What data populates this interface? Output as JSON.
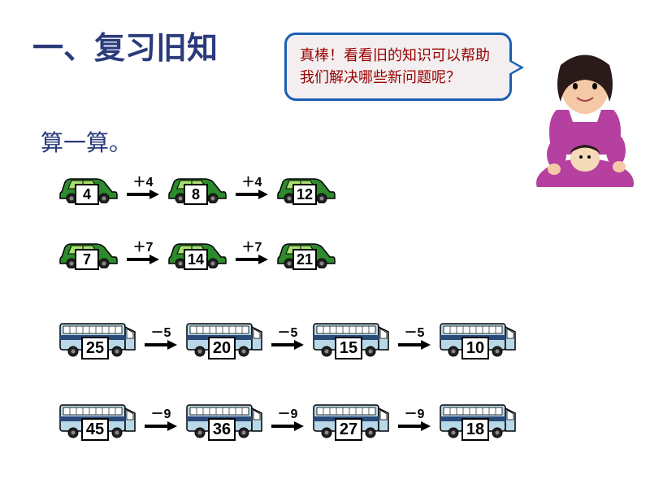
{
  "title": "一、复习旧知",
  "subtitle": "算一算。",
  "speech": "真棒！看看旧的知识可以帮助我们解决哪些新问题呢？",
  "colors": {
    "title_color": "#2a3a7a",
    "speech_border": "#1a5fb4",
    "speech_bg": "#f3eff0",
    "speech_text": "#990000",
    "car_body": "#2d8a2d",
    "car_dark": "#1a5c1a",
    "car_window": "#a8e070",
    "bus_body": "#b8d8e8",
    "bus_stripe": "#2a4a7a",
    "bus_window": "#ffffff",
    "arrow_color": "#000000",
    "num_box_bg": "#ffffff",
    "num_box_border": "#000000",
    "teacher_hair": "#2a1a1a",
    "teacher_skin": "#f5c9a8",
    "teacher_shirt": "#b540a0",
    "teacher_collar": "#ffffff"
  },
  "rows": [
    {
      "vehicle_type": "car",
      "items": [
        {
          "value": "4"
        },
        {
          "op": "＋4",
          "value": "8"
        },
        {
          "op": "＋4",
          "value": "12"
        }
      ]
    },
    {
      "vehicle_type": "car",
      "items": [
        {
          "value": "7"
        },
        {
          "op": "＋7",
          "value": "14"
        },
        {
          "op": "＋7",
          "value": "21"
        }
      ]
    },
    {
      "vehicle_type": "bus",
      "items": [
        {
          "value": "25"
        },
        {
          "op": "－5",
          "value": "20"
        },
        {
          "op": "－5",
          "value": "15"
        },
        {
          "op": "－5",
          "value": "10"
        }
      ]
    },
    {
      "vehicle_type": "bus",
      "items": [
        {
          "value": "45"
        },
        {
          "op": "－9",
          "value": "36"
        },
        {
          "op": "－9",
          "value": "27"
        },
        {
          "op": "－9",
          "value": "18"
        }
      ]
    }
  ]
}
